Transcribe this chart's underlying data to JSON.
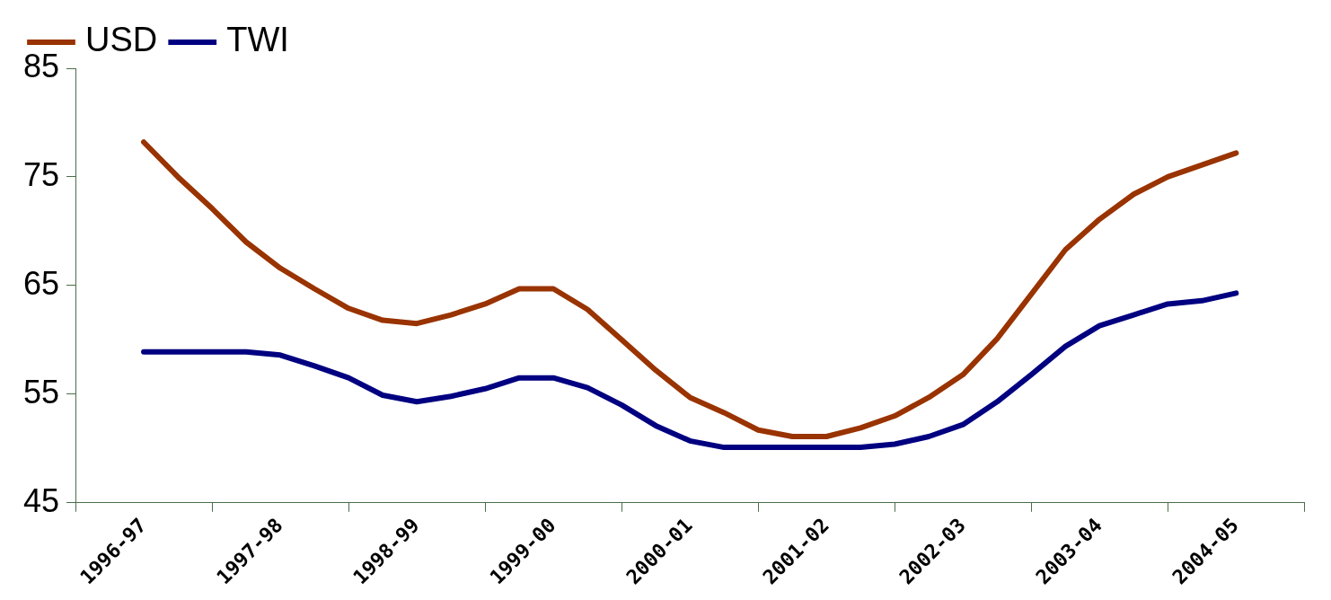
{
  "chart_data": {
    "type": "line",
    "categories": [
      null,
      null,
      "1996-97",
      null,
      null,
      null,
      "1997-98",
      null,
      null,
      null,
      "1998-99",
      null,
      null,
      null,
      "1999-00",
      null,
      null,
      null,
      "2000-01",
      null,
      null,
      null,
      "2001-02",
      null,
      null,
      null,
      "2002-03",
      null,
      null,
      null,
      "2003-04",
      null,
      null,
      null,
      "2004-05",
      null,
      null
    ],
    "series": [
      {
        "name": "USD",
        "color": "#993300",
        "values": [
          null,
          null,
          78.2,
          75.0,
          72.1,
          69.0,
          66.6,
          64.7,
          62.9,
          61.8,
          61.5,
          62.3,
          63.3,
          64.7,
          64.7,
          62.8,
          60.0,
          57.2,
          54.7,
          53.3,
          51.7,
          51.1,
          51.1,
          51.9,
          53.0,
          54.7,
          56.8,
          60.1,
          64.2,
          68.3,
          71.1,
          73.4,
          75.0,
          76.1,
          77.2,
          null,
          null
        ]
      },
      {
        "name": "TWI",
        "color": "#000080",
        "values": [
          null,
          null,
          58.9,
          58.9,
          58.9,
          58.9,
          58.6,
          57.6,
          56.5,
          54.9,
          54.3,
          54.8,
          55.5,
          56.5,
          56.5,
          55.6,
          54.0,
          52.1,
          50.7,
          50.1,
          50.1,
          50.1,
          50.1,
          50.1,
          50.4,
          51.1,
          52.2,
          54.3,
          56.8,
          59.4,
          61.3,
          62.3,
          63.3,
          63.6,
          64.3,
          null,
          null
        ]
      }
    ],
    "ylim": [
      45,
      85
    ],
    "yticks": [
      45,
      55,
      65,
      75,
      85
    ],
    "grid": false,
    "legend": "top left",
    "marker": "none",
    "line_style": "solid"
  }
}
